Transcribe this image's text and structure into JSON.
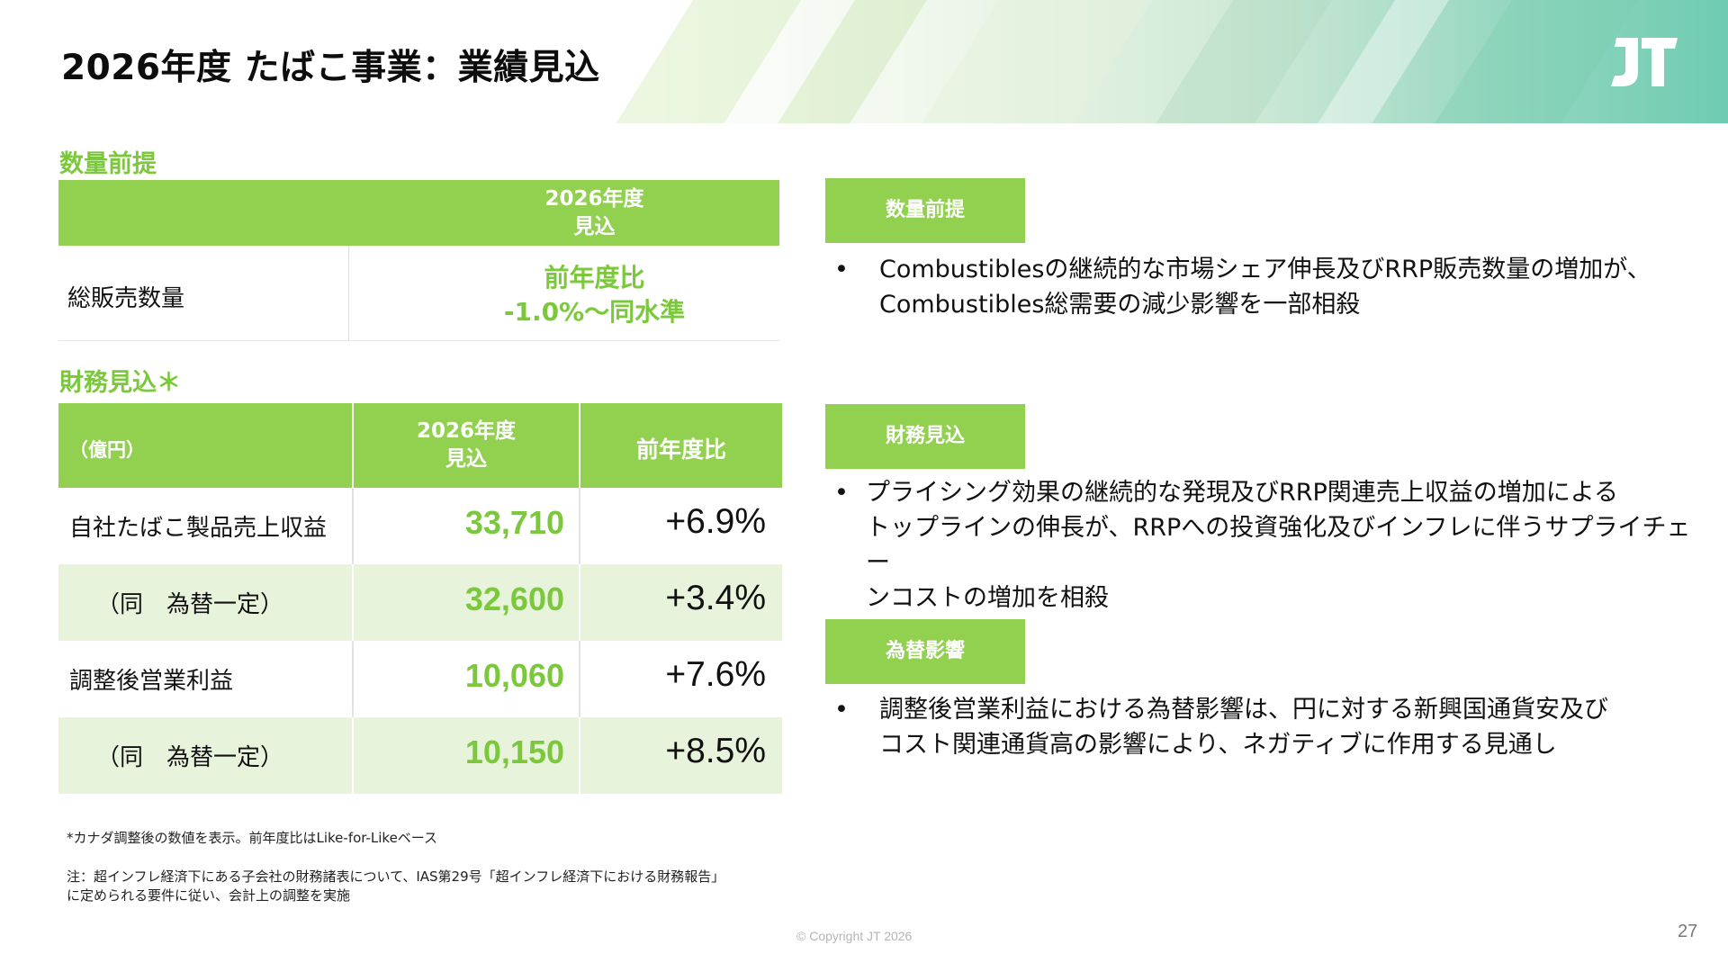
{
  "title": "2026年度 たばこ事業：業績見込",
  "logo": "JT",
  "volume": {
    "section": "数量前提",
    "period_line1": "2026年度",
    "period_line2": "見込",
    "row_label": "総販売数量",
    "value_line1": "前年度比",
    "value_line2": "-1.0%～同水準"
  },
  "finance": {
    "section": "財務見込＊",
    "header": {
      "unit": "（億円）",
      "period_line1": "2026年度",
      "period_line2": "見込",
      "yoy": "前年度比"
    },
    "rows": [
      {
        "name": "自社たばこ製品売上収益",
        "amount": "33,710",
        "yoy": "+6.9%"
      },
      {
        "name": "（同　為替一定）",
        "amount": "32,600",
        "yoy": "+3.4%"
      },
      {
        "name": "調整後営業利益",
        "amount": "10,060",
        "yoy": "+7.6%"
      },
      {
        "name": "（同　為替一定）",
        "amount": "10,150",
        "yoy": "+8.5%"
      }
    ]
  },
  "footnotes": {
    "note1": "*カナダ調整後の数値を表示。前年度比はLike-for-Likeベース",
    "note2_line1": "注：超インフレ経済下にある子会社の財務諸表について、IAS第29号「超インフレ経済下における財務報告」",
    "note2_line2": "に定められる要件に従い、会計上の調整を実施"
  },
  "commentary": [
    {
      "tag": "数量前提",
      "bullet": "•",
      "lines": [
        "Combustiblesの継続的な市場シェア伸長及びRRP販売数量の増加が、",
        "Combustibles総需要の減少影響を一部相殺"
      ]
    },
    {
      "tag": "財務見込",
      "bullet": "•",
      "lines": [
        "プライシング効果の継続的な発現及びRRP関連売上収益の増加による",
        "トップラインの伸長が、RRPへの投資強化及びインフレに伴うサプライチェー",
        "ンコストの増加を相殺"
      ]
    },
    {
      "tag": "為替影響",
      "bullet": "•",
      "lines": [
        "調整後営業利益における為替影響は、円に対する新興国通貨安及び",
        "コスト関連通貨高の影響により、ネガティブに作用する見通し"
      ]
    }
  ],
  "copyright": "© Copyright JT 2026",
  "page_number": "27",
  "colors": {
    "accent_green": "#92d050",
    "value_green": "#7cc83c",
    "row_shade": "#e8f3dc"
  }
}
